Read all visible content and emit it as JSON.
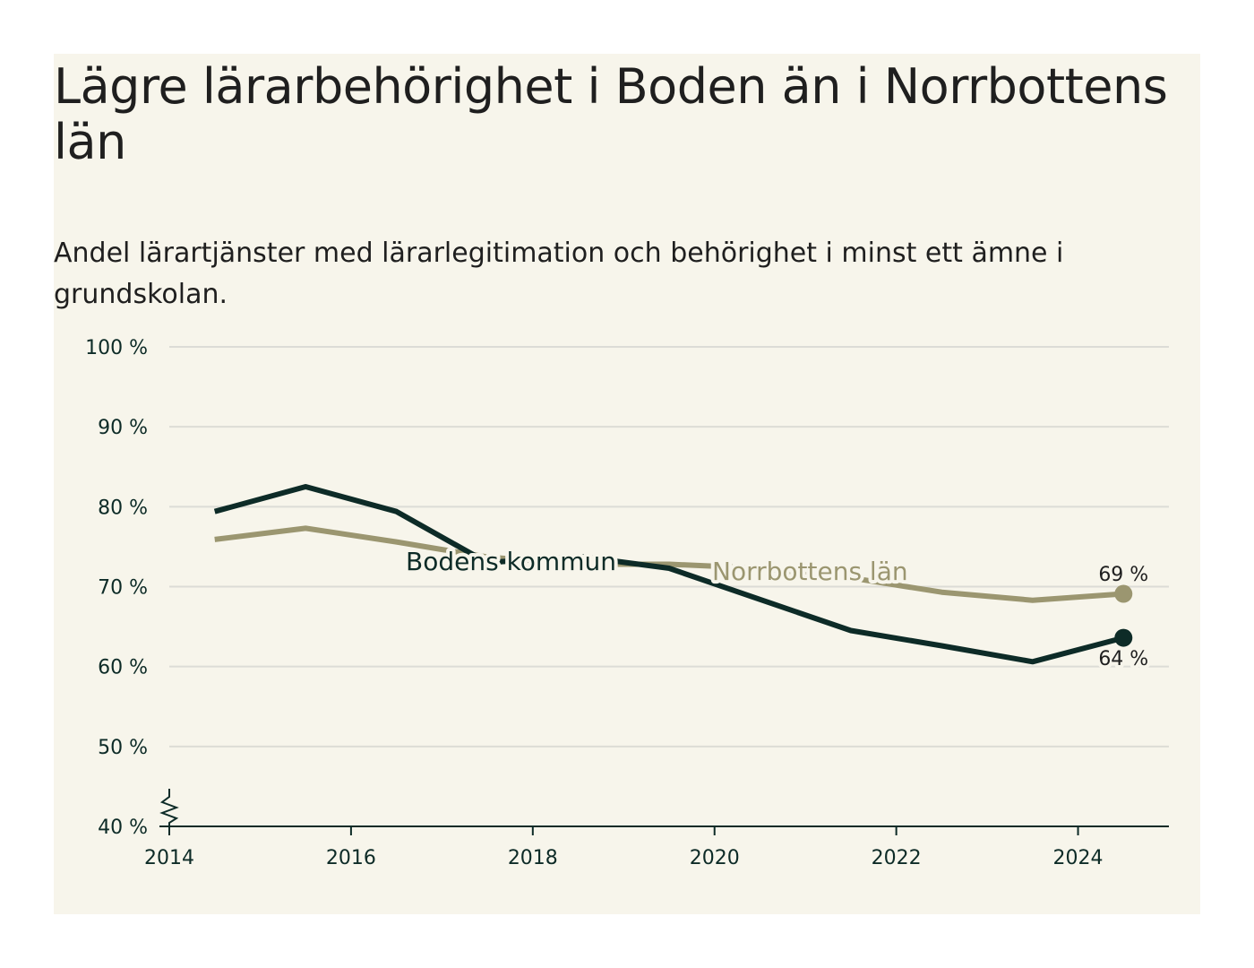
{
  "title": "Lägre lärarbehörighet i Boden än i Norrbottens län",
  "subtitle": "Andel lärartjänster med lärarlegitimation och behörighet i minst ett ämne i grundskolan.",
  "colors": {
    "background": "#f7f5eb",
    "boden": "#0d2b27",
    "norrbotten": "#9b9670",
    "grid": "#dcdcd6",
    "axis": "#0d2b27"
  },
  "chart_data": {
    "type": "line",
    "title": "Lägre lärarbehörighet i Boden än i Norrbottens län",
    "subtitle": "Andel lärartjänster med lärarlegitimation och behörighet i minst ett ämne i grundskolan.",
    "xlabel": "",
    "ylabel": "",
    "xlim": [
      2014,
      2025
    ],
    "ylim": [
      40,
      100
    ],
    "y_break": true,
    "grid": true,
    "x_ticks": [
      2014,
      2016,
      2018,
      2020,
      2022,
      2024
    ],
    "x_tick_labels": [
      "2014",
      "2016",
      "2018",
      "2020",
      "2022",
      "2024"
    ],
    "y_ticks": [
      40,
      50,
      60,
      70,
      80,
      90,
      100
    ],
    "y_tick_labels": [
      "40 %",
      "50 %",
      "60 %",
      "70 %",
      "80 %",
      "90 %",
      "100 %"
    ],
    "legend": "inline labels on lines",
    "series": [
      {
        "name": "Bodens kommun",
        "color": "#0d2b27",
        "x": [
          2014.5,
          2015.5,
          2016.5,
          2017.5,
          2018.5,
          2019.5,
          2020.5,
          2021.5,
          2022.5,
          2023.5,
          2024.5
        ],
        "values": [
          79.4,
          82.5,
          79.4,
          73.0,
          73.8,
          72.3,
          68.4,
          64.5,
          62.6,
          60.6,
          63.6
        ],
        "end_label": "64 %"
      },
      {
        "name": "Norrbottens län",
        "color": "#9b9670",
        "x": [
          2014.5,
          2015.5,
          2016.5,
          2017.5,
          2018.5,
          2019.5,
          2020.5,
          2021.5,
          2022.5,
          2023.5,
          2024.5
        ],
        "values": [
          75.9,
          77.3,
          75.6,
          73.7,
          72.8,
          72.8,
          72.3,
          71.1,
          69.3,
          68.3,
          69.1
        ],
        "end_label": "69 %"
      }
    ]
  }
}
